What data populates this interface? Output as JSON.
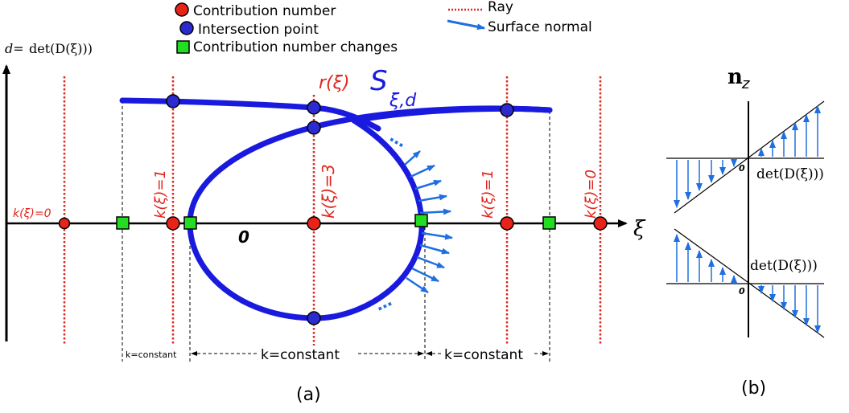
{
  "legend": {
    "contribution_number": "Contribution number",
    "intersection_point": "Intersection point",
    "contribution_changes": "Contribution number changes",
    "ray": "Ray",
    "surface_normal": "Surface normal"
  },
  "panel_a": {
    "y_axis_label_d": "d=",
    "y_axis_label_det": "det(D(ξ)))",
    "x_axis_label": "ξ",
    "ray_label": "r(ξ)",
    "surface_label_main": "S",
    "surface_label_sub": "ξ,d",
    "origin_label": "0",
    "k_labels": [
      "k(ξ)=0",
      "k(ξ)=1",
      "k(ξ)=3",
      "k(ξ)=1",
      "k(ξ)=0"
    ],
    "dots_upper": "…",
    "dots_lower": "…",
    "k_const_small": "k=constant",
    "k_const_mid": "k=constant",
    "k_const_right": "k=constant",
    "caption": "(a)"
  },
  "panel_b": {
    "nz_main": "n",
    "nz_sub": "z",
    "upper_axis_label": "det(D(ξ)))",
    "upper_origin": "0",
    "lower_axis_label": "det(D(ξ)))",
    "lower_origin": "0",
    "caption": "(b)"
  },
  "colors": {
    "surface": "#1a1adf",
    "normal_arrow": "#1f6fe0",
    "ray": "#e0261e",
    "contribution_dot": "#e8231a",
    "intersection_dot": "#2b2bd0",
    "change_square": "#22dd22",
    "axis": "#000000"
  }
}
